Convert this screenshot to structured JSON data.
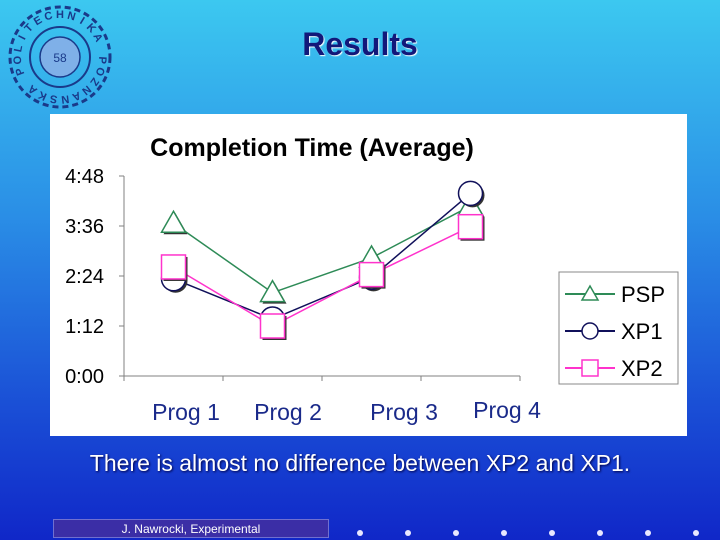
{
  "slide": {
    "title": "Results",
    "caption": "There is almost no difference between XP2 and XP1.",
    "footer": "J. Nawrocki, Experimental",
    "logo": {
      "name": "politechnika-poznanska-logo",
      "text": "POLITECHNIKA POZNANSKA",
      "center": "58"
    }
  },
  "colors": {
    "title": "#12187a",
    "PSP": "#2e8b57",
    "XP1": "#10105a",
    "XP2": "#ff33cc",
    "grid": "#808080"
  },
  "chart_data": {
    "type": "line",
    "title": "Completion Time (Average)",
    "categories": [
      "Prog 1",
      "Prog 2",
      "Prog 3",
      "Prog 4"
    ],
    "y_unit": "hours:minutes",
    "y_tick_labels": [
      "0:00",
      "1:12",
      "2:24",
      "3:36",
      "4:48"
    ],
    "y_tick_values": [
      0,
      72,
      144,
      216,
      288
    ],
    "ylim": [
      0,
      288
    ],
    "grid": false,
    "legend_position": "right",
    "series": [
      {
        "name": "PSP",
        "marker": "triangle",
        "values": [
          220,
          120,
          170,
          245
        ]
      },
      {
        "name": "XP1",
        "marker": "circle",
        "values": [
          140,
          82,
          142,
          263
        ]
      },
      {
        "name": "XP2",
        "marker": "square",
        "values": [
          157,
          72,
          146,
          215
        ]
      }
    ]
  }
}
